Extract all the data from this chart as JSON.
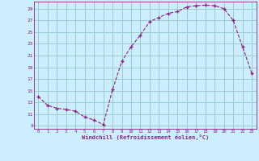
{
  "x": [
    0,
    1,
    2,
    3,
    4,
    5,
    6,
    7,
    8,
    9,
    10,
    11,
    12,
    13,
    14,
    15,
    16,
    17,
    18,
    19,
    20,
    21,
    22,
    23
  ],
  "y": [
    14.0,
    12.5,
    12.0,
    11.8,
    11.5,
    10.5,
    10.0,
    9.2,
    15.2,
    20.0,
    22.5,
    24.5,
    26.8,
    27.5,
    28.2,
    28.5,
    29.3,
    29.5,
    29.6,
    29.5,
    29.0,
    27.0,
    22.5,
    18.0
  ],
  "line_color": "#882288",
  "marker": "+",
  "bg_color": "#cceeff",
  "grid_color": "#99cccc",
  "xlabel": "Windchill (Refroidissement éolien,°C)",
  "xlim": [
    -0.5,
    23.5
  ],
  "ylim": [
    8.5,
    30.2
  ],
  "yticks": [
    9,
    11,
    13,
    15,
    17,
    19,
    21,
    23,
    25,
    27,
    29
  ],
  "xticks": [
    0,
    1,
    2,
    3,
    4,
    5,
    6,
    7,
    8,
    9,
    10,
    11,
    12,
    13,
    14,
    15,
    16,
    17,
    18,
    19,
    20,
    21,
    22,
    23
  ],
  "label_color": "#882288",
  "tick_color": "#882288",
  "font": "monospace"
}
